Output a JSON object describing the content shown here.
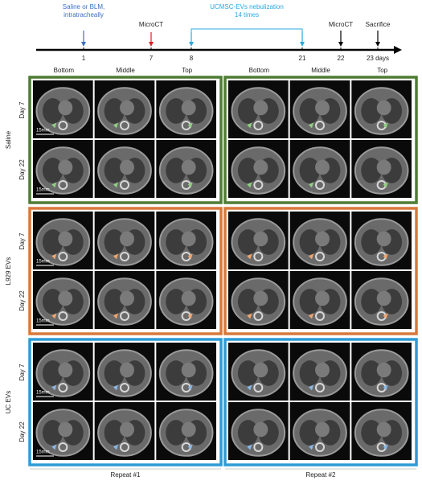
{
  "timeline": {
    "events": [
      {
        "lines": [
          "Saline or BLM,",
          "intratracheally"
        ]
      },
      {
        "lines": [
          "MicroCT"
        ]
      },
      {
        "lines": [
          "UCMSC-EVs nebulization",
          "14 times"
        ]
      },
      {
        "lines": [
          "MicroCT"
        ]
      },
      {
        "lines": [
          "Sacrifice"
        ]
      }
    ],
    "ticks": [
      "1",
      "7",
      "8",
      "21",
      "22",
      "23 days"
    ]
  },
  "repeats": [
    {
      "label": "Repeat #1",
      "columns": [
        "Bottom",
        "Middle",
        "Top"
      ]
    },
    {
      "label": "Repeat #2",
      "columns": [
        "Bottom",
        "Middle",
        "Top"
      ]
    }
  ],
  "groups": [
    {
      "label": "Saline",
      "rows": [
        "Day 7",
        "Day 22"
      ]
    },
    {
      "label": "L929 EVs",
      "rows": [
        "Day 7",
        "Day 22"
      ]
    },
    {
      "label": "UC EVs",
      "rows": [
        "Day 7",
        "Day 22"
      ]
    }
  ],
  "scale_bar": "15mm"
}
